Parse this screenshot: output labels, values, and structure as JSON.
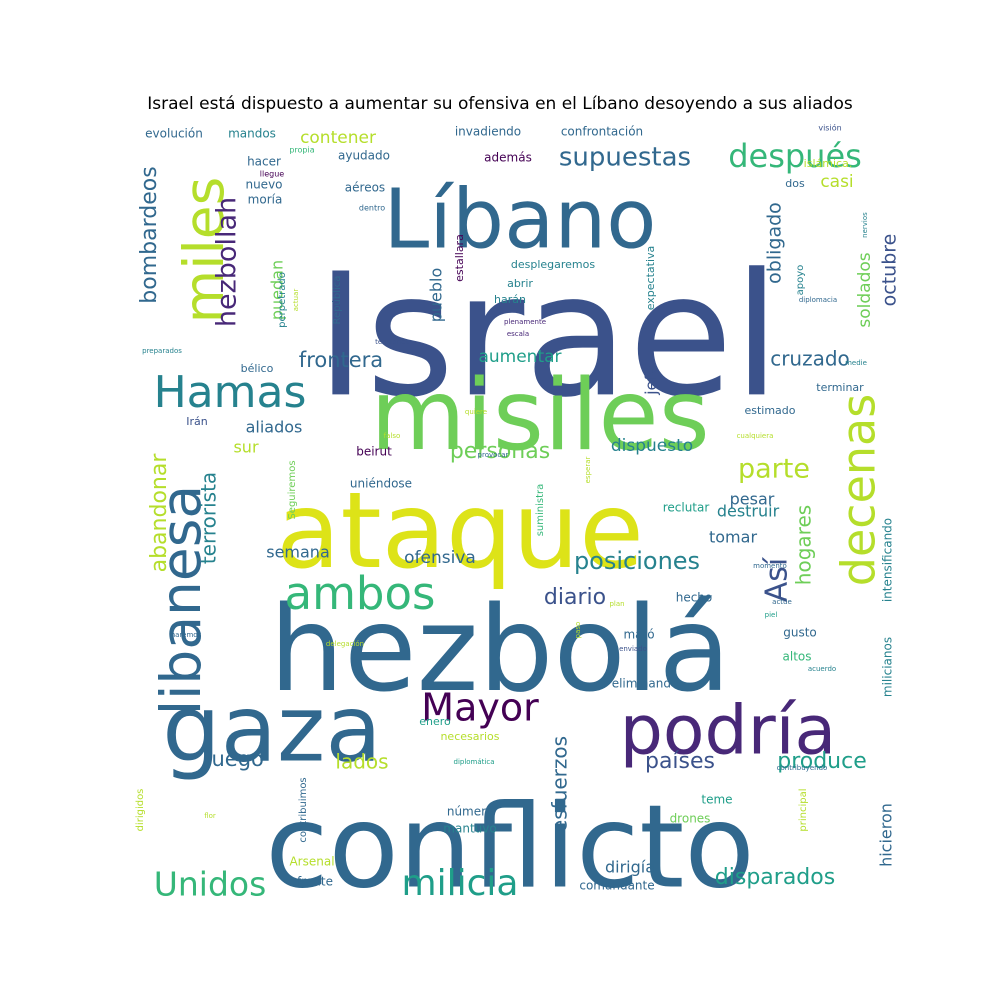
{
  "chart_data": {
    "type": "wordcloud",
    "title": "Israel está dispuesto a aumentar su ofensiva en el Líbano desoyendo a sus aliados",
    "colors": [
      "#3b528b",
      "#31688e",
      "#26828e",
      "#1f9e89",
      "#35b779",
      "#6ece58",
      "#b5de2b",
      "#dde318",
      "#440154",
      "#482878"
    ],
    "words": [
      {
        "text": "Israel",
        "weight": 100
      },
      {
        "text": "misiles",
        "weight": 62
      },
      {
        "text": "ataque",
        "weight": 66
      },
      {
        "text": "hezbolá",
        "weight": 75
      },
      {
        "text": "conflicto",
        "weight": 72
      },
      {
        "text": "gaza",
        "weight": 60
      },
      {
        "text": "Líbano",
        "weight": 52
      },
      {
        "text": "podría",
        "weight": 44
      },
      {
        "text": "decenas",
        "weight": 30
      },
      {
        "text": "libanesa",
        "weight": 36
      },
      {
        "text": "miles",
        "weight": 38
      },
      {
        "text": "Hamas",
        "weight": 27
      },
      {
        "text": "ambos",
        "weight": 29
      },
      {
        "text": "Mayor",
        "weight": 22
      },
      {
        "text": "milicia",
        "weight": 23
      },
      {
        "text": "Unidos",
        "weight": 21
      },
      {
        "text": "después",
        "weight": 20
      },
      {
        "text": "supuestas",
        "weight": 16
      },
      {
        "text": "hezbollah",
        "weight": 17
      },
      {
        "text": "Así",
        "weight": 19
      },
      {
        "text": "parte",
        "weight": 16
      },
      {
        "text": "posiciones",
        "weight": 14
      },
      {
        "text": "abandonar",
        "weight": 13
      },
      {
        "text": "bombardeos",
        "weight": 13
      },
      {
        "text": "personas",
        "weight": 13
      },
      {
        "text": "frontera",
        "weight": 12
      },
      {
        "text": "cruzado",
        "weight": 12
      },
      {
        "text": "terrorista",
        "weight": 12
      },
      {
        "text": "países",
        "weight": 13
      },
      {
        "text": "produce",
        "weight": 13
      },
      {
        "text": "disparados",
        "weight": 13
      },
      {
        "text": "diario",
        "weight": 13
      },
      {
        "text": "esfuerzos",
        "weight": 12
      },
      {
        "text": "hogares",
        "weight": 12
      },
      {
        "text": "fuego",
        "weight": 13
      },
      {
        "text": "lados",
        "weight": 12
      },
      {
        "text": "obligado",
        "weight": 11
      },
      {
        "text": "octubre",
        "weight": 11
      },
      {
        "text": "soldados",
        "weight": 10
      },
      {
        "text": "contener",
        "weight": 10
      },
      {
        "text": "casi",
        "weight": 10
      },
      {
        "text": "aumentar",
        "weight": 10
      },
      {
        "text": "ofensiva",
        "weight": 10
      },
      {
        "text": "dispuesto",
        "weight": 10
      },
      {
        "text": "destruir",
        "weight": 9
      },
      {
        "text": "pueblo",
        "weight": 9
      },
      {
        "text": "puedan",
        "weight": 9
      },
      {
        "text": "jefe",
        "weight": 9
      },
      {
        "text": "aliados",
        "weight": 9
      },
      {
        "text": "sur",
        "weight": 9
      },
      {
        "text": "semana",
        "weight": 9
      },
      {
        "text": "tomar",
        "weight": 9
      },
      {
        "text": "pesar",
        "weight": 9
      },
      {
        "text": "dirigía",
        "weight": 9
      },
      {
        "text": "hicieron",
        "weight": 9
      },
      {
        "text": "milicianos",
        "weight": 7
      },
      {
        "text": "intensificando",
        "weight": 7
      },
      {
        "text": "evolución",
        "weight": 6
      },
      {
        "text": "mandos",
        "weight": 6
      },
      {
        "text": "invadiendo",
        "weight": 6
      },
      {
        "text": "confrontación",
        "weight": 6
      },
      {
        "text": "visión",
        "weight": 4
      },
      {
        "text": "propia",
        "weight": 4
      },
      {
        "text": "además",
        "weight": 6
      },
      {
        "text": "hacer",
        "weight": 6
      },
      {
        "text": "ayudado",
        "weight": 6
      },
      {
        "text": "islámica.",
        "weight": 5
      },
      {
        "text": "llegue",
        "weight": 4
      },
      {
        "text": "nuevo",
        "weight": 6
      },
      {
        "text": "aéreos",
        "weight": 6
      },
      {
        "text": "dos",
        "weight": 5
      },
      {
        "text": "moría",
        "weight": 6
      },
      {
        "text": "dentro",
        "weight": 4
      },
      {
        "text": "nervios",
        "weight": 4
      },
      {
        "text": "estallara",
        "weight": 5
      },
      {
        "text": "expectativa",
        "weight": 5
      },
      {
        "text": "desplegaremos",
        "weight": 6
      },
      {
        "text": "abrir",
        "weight": 6
      },
      {
        "text": "harán",
        "weight": 6
      },
      {
        "text": "apoyo",
        "weight": 5
      },
      {
        "text": "República",
        "weight": 5
      },
      {
        "text": "perpetrado",
        "weight": 5
      },
      {
        "text": "actuar",
        "weight": 4
      },
      {
        "text": "plenamente",
        "weight": 4
      },
      {
        "text": "escala",
        "weight": 4
      },
      {
        "text": "diplomacia",
        "weight": 4
      },
      {
        "text": "tensiones",
        "weight": 4
      },
      {
        "text": "preparados",
        "weight": 4
      },
      {
        "text": "bélico",
        "weight": 5
      },
      {
        "text": "medie",
        "weight": 4
      },
      {
        "text": "terminar",
        "weight": 6
      },
      {
        "text": "estimado",
        "weight": 6
      },
      {
        "text": "quiere",
        "weight": 4
      },
      {
        "text": "Irán",
        "weight": 6
      },
      {
        "text": "falso",
        "weight": 4
      },
      {
        "text": "cualquiera",
        "weight": 4
      },
      {
        "text": "provocar",
        "weight": 4
      },
      {
        "text": "beirut",
        "weight": 7
      },
      {
        "text": "Seguiremos",
        "weight": 5
      },
      {
        "text": "suministra",
        "weight": 5
      },
      {
        "text": "esperar",
        "weight": 4
      },
      {
        "text": "uniéndose",
        "weight": 7
      },
      {
        "text": "reclutar",
        "weight": 7
      },
      {
        "text": "momento",
        "weight": 4
      },
      {
        "text": "hecho",
        "weight": 7
      },
      {
        "text": "actúe",
        "weight": 4
      },
      {
        "text": "plan",
        "weight": 4
      },
      {
        "text": "piel",
        "weight": 4
      },
      {
        "text": "gusto",
        "weight": 7
      },
      {
        "text": "haremos",
        "weight": 4
      },
      {
        "text": "mató",
        "weight": 7
      },
      {
        "text": "paso",
        "weight": 4
      },
      {
        "text": "delegación",
        "weight": 4
      },
      {
        "text": "enviado",
        "weight": 4
      },
      {
        "text": "altos",
        "weight": 6
      },
      {
        "text": "acuerdo",
        "weight": 4
      },
      {
        "text": "eliminando",
        "weight": 7
      },
      {
        "text": "enero",
        "weight": 6
      },
      {
        "text": "necesarios",
        "weight": 6
      },
      {
        "text": "diplomática",
        "weight": 4
      },
      {
        "text": "contribuyendo",
        "weight": 4
      },
      {
        "text": "dirigidos",
        "weight": 5
      },
      {
        "text": "número",
        "weight": 7
      },
      {
        "text": "teme",
        "weight": 6
      },
      {
        "text": "mantuvo",
        "weight": 7
      },
      {
        "text": "drones",
        "weight": 7
      },
      {
        "text": "flor",
        "weight": 4
      },
      {
        "text": "contribuimos",
        "weight": 5
      },
      {
        "text": "principal",
        "weight": 5
      },
      {
        "text": "Arsenal",
        "weight": 7
      },
      {
        "text": "frente",
        "weight": 6
      },
      {
        "text": "comandante",
        "weight": 6
      }
    ]
  }
}
